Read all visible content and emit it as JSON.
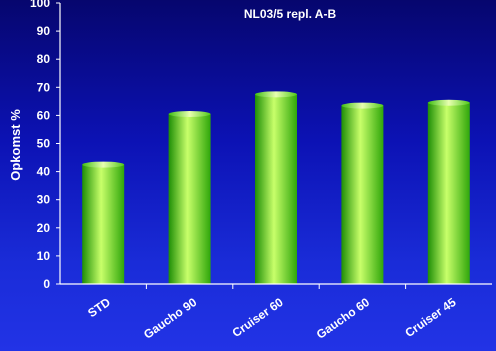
{
  "chart_data": {
    "type": "bar",
    "subtitle": "NL03/5 repl. A-B",
    "ylabel": "Opkomst %",
    "xlabel": "",
    "categories": [
      "STD",
      "Gaucho 90",
      "Cruiser 60",
      "Gaucho 60",
      "Cruiser 45"
    ],
    "values": [
      42.5,
      60.5,
      67.5,
      63.5,
      64.5
    ],
    "ylim": [
      0,
      100
    ],
    "yticks": [
      "0",
      "10",
      "20",
      "30",
      "40",
      "50",
      "60",
      "70",
      "80",
      "90",
      "100"
    ],
    "grid": false,
    "legend": "none",
    "colors": {
      "bar_light": "#c8ff6a",
      "bar_mid": "#5cf21c",
      "bar_dark": "#1e8e06",
      "axis": "#ffffff",
      "text": "#ffffff"
    }
  }
}
